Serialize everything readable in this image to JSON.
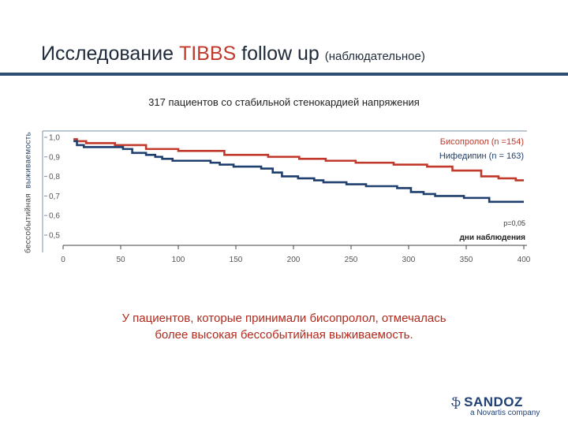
{
  "header": {
    "title_prefix": "Исследование",
    "title_highlight": "TIBBS",
    "title_suffix": "follow up",
    "title_note": "(наблюдательное)"
  },
  "subtitle": "317 пациентов со стабильной стенокардией напряжения",
  "chart_data": {
    "type": "line",
    "ylabel_part1": "бессобытийная",
    "ylabel_part2": "выживаемость",
    "xlabel": "дни наблюдения",
    "x_ticks": [
      0,
      50,
      100,
      150,
      200,
      250,
      300,
      350,
      400
    ],
    "x_tick_labels": [
      "0",
      "50",
      "100",
      "150",
      "200",
      "250",
      "300",
      "350",
      "400"
    ],
    "y_ticks": [
      0.5,
      0.6,
      0.7,
      0.8,
      0.9,
      1.0
    ],
    "y_tick_labels": [
      "0,5",
      "0,6",
      "0,7",
      "0,8",
      "0,9",
      "1,0"
    ],
    "xlim": [
      0,
      400
    ],
    "ylim": [
      0.45,
      1.02
    ],
    "p_value": "p=0,05",
    "series": [
      {
        "name": "Бисопролол (n =154)",
        "color": "#c0392b",
        "points": [
          [
            9,
            0.99
          ],
          [
            12,
            0.98
          ],
          [
            20,
            0.97
          ],
          [
            45,
            0.96
          ],
          [
            72,
            0.94
          ],
          [
            100,
            0.93
          ],
          [
            140,
            0.91
          ],
          [
            178,
            0.9
          ],
          [
            205,
            0.89
          ],
          [
            228,
            0.88
          ],
          [
            254,
            0.87
          ],
          [
            287,
            0.86
          ],
          [
            316,
            0.85
          ],
          [
            338,
            0.83
          ],
          [
            363,
            0.8
          ],
          [
            378,
            0.79
          ],
          [
            393,
            0.78
          ],
          [
            400,
            0.78
          ]
        ]
      },
      {
        "name": "Нифедипин (n = 163)",
        "color": "#1f3f6e",
        "points": [
          [
            9,
            0.98
          ],
          [
            12,
            0.96
          ],
          [
            18,
            0.95
          ],
          [
            52,
            0.94
          ],
          [
            60,
            0.92
          ],
          [
            72,
            0.91
          ],
          [
            80,
            0.9
          ],
          [
            86,
            0.89
          ],
          [
            95,
            0.88
          ],
          [
            128,
            0.87
          ],
          [
            136,
            0.86
          ],
          [
            148,
            0.85
          ],
          [
            172,
            0.84
          ],
          [
            182,
            0.82
          ],
          [
            190,
            0.8
          ],
          [
            204,
            0.79
          ],
          [
            218,
            0.78
          ],
          [
            226,
            0.77
          ],
          [
            246,
            0.76
          ],
          [
            263,
            0.75
          ],
          [
            290,
            0.74
          ],
          [
            302,
            0.72
          ],
          [
            313,
            0.71
          ],
          [
            323,
            0.7
          ],
          [
            348,
            0.69
          ],
          [
            370,
            0.67
          ],
          [
            400,
            0.67
          ]
        ]
      }
    ]
  },
  "conclusion": {
    "line1": "У пациентов, которые принимали бисопролол, отмечалась",
    "line2": "более высокая бессобытийная выживаемость."
  },
  "logo": {
    "mark": "ֆ",
    "name": "SANDOZ",
    "sub": "a Novartis company"
  }
}
